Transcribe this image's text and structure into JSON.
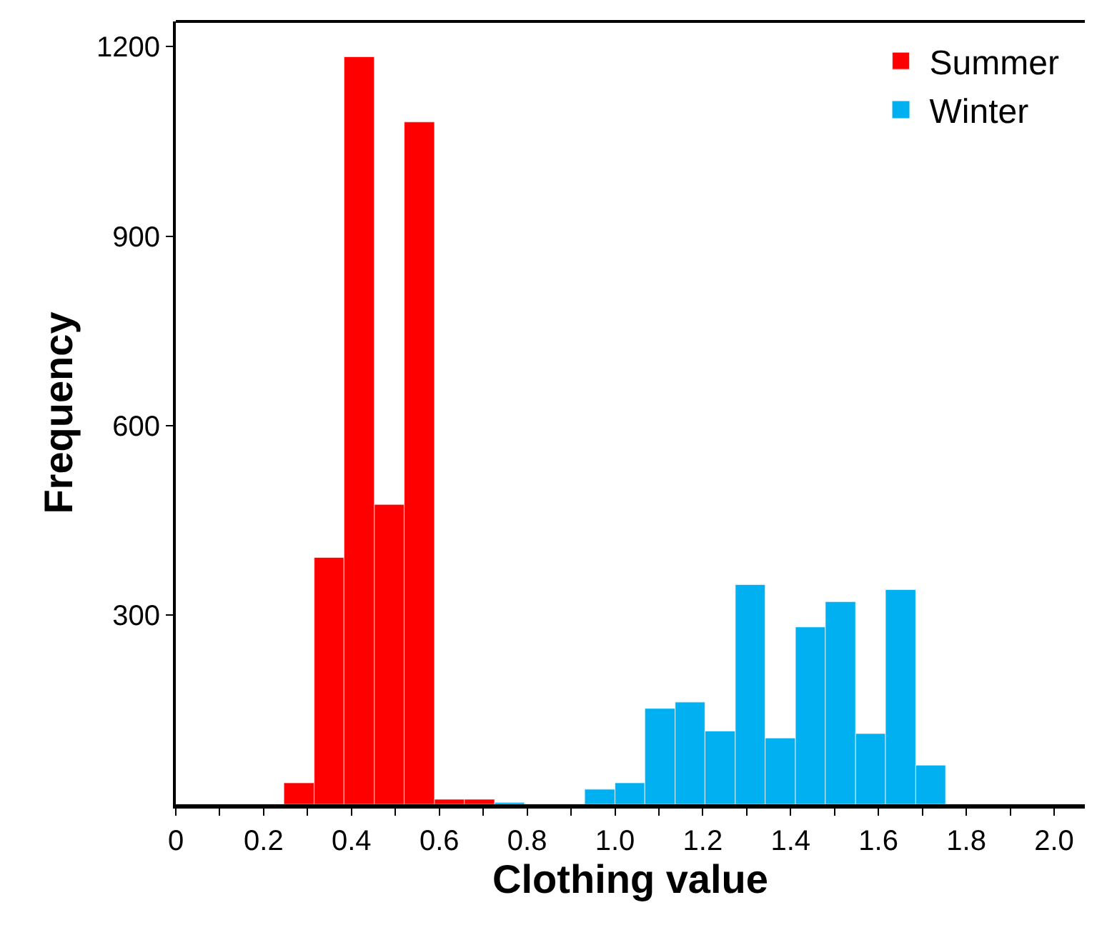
{
  "chart_data": {
    "type": "histogram",
    "xlabel": "Clothing value",
    "ylabel": "Frequency",
    "bins": [
      0.246,
      0.315,
      0.383,
      0.452,
      0.52,
      0.589,
      0.657,
      0.726,
      0.794,
      0.931,
      1.0,
      1.068,
      1.137,
      1.205,
      1.274,
      1.342,
      1.411,
      1.479,
      1.548,
      1.616,
      1.685,
      1.753
    ],
    "series": [
      {
        "name": "Summer",
        "color": "#ff0000",
        "values": [
          34,
          391,
          1184,
          475,
          1081,
          8,
          8,
          0,
          0,
          0,
          0,
          0,
          0,
          0,
          0,
          0,
          0,
          0,
          0,
          0,
          0
        ]
      },
      {
        "name": "Winter",
        "color": "#00b0f0",
        "values": [
          0,
          0,
          0,
          0,
          0,
          0,
          0,
          3,
          0,
          24,
          34,
          152,
          162,
          116,
          348,
          105,
          281,
          321,
          112,
          340,
          62
        ]
      }
    ],
    "xlim": [
      0,
      2.07
    ],
    "xticks": [
      0,
      {
        "value": 0.1,
        "label": null
      },
      {
        "value": 0.2,
        "label": "0.2"
      },
      {
        "value": 0.3,
        "label": null
      },
      {
        "value": 0.4,
        "label": "0.4"
      },
      {
        "value": 0.5,
        "label": null
      },
      {
        "value": 0.6,
        "label": "0.6"
      },
      {
        "value": 0.7,
        "label": null
      },
      {
        "value": 0.8,
        "label": "0.8"
      },
      {
        "value": 0.9,
        "label": null
      },
      {
        "value": 1.0,
        "label": "1.0"
      },
      {
        "value": 1.1,
        "label": null
      },
      {
        "value": 1.2,
        "label": "1.2"
      },
      {
        "value": 1.3,
        "label": null
      },
      {
        "value": 1.4,
        "label": "1.4"
      },
      {
        "value": 1.5,
        "label": null
      },
      {
        "value": 1.6,
        "label": "1.6"
      },
      {
        "value": 1.7,
        "label": null
      },
      {
        "value": 1.8,
        "label": "1.8"
      },
      {
        "value": 1.9,
        "label": null
      },
      {
        "value": 2.0,
        "label": "2.0"
      }
    ],
    "ylim": [
      0,
      1240
    ],
    "yticks": [
      300,
      600,
      900,
      1200
    ],
    "legend": "top right"
  }
}
